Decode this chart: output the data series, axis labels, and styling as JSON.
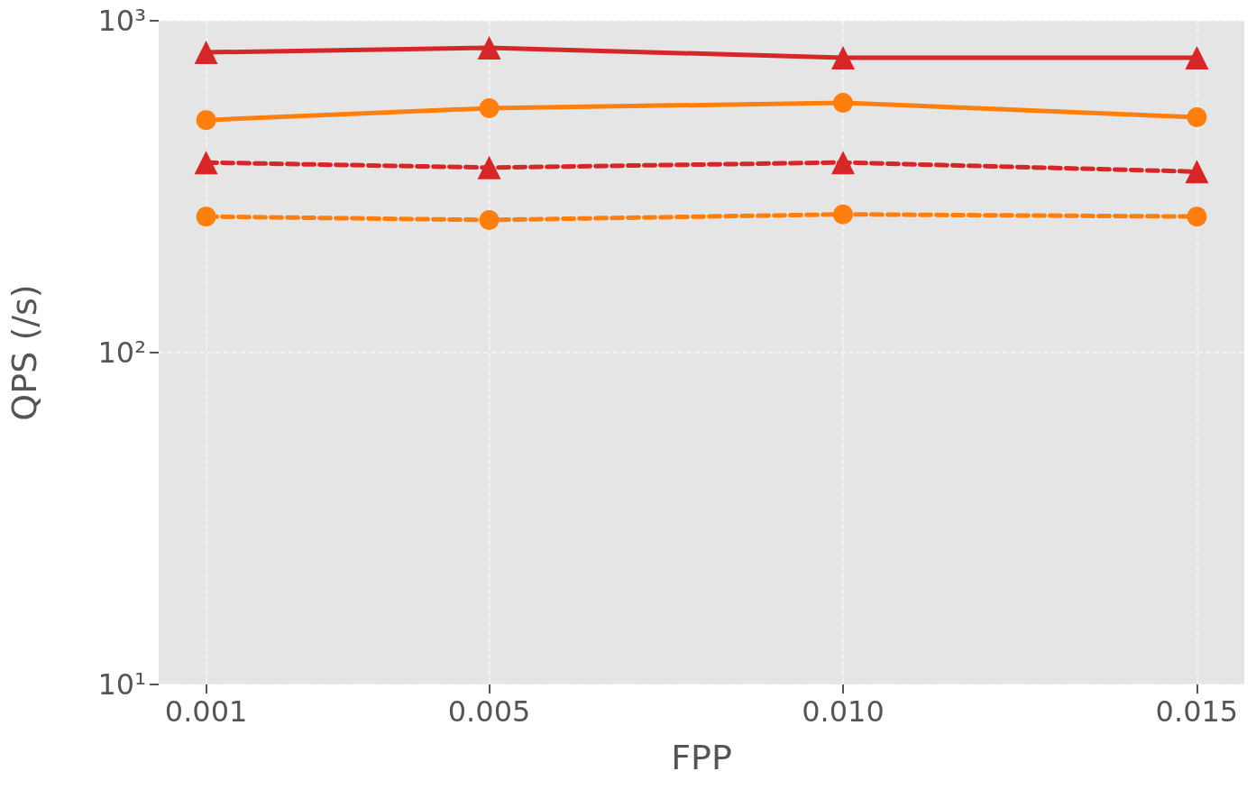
{
  "chart_data": {
    "type": "line",
    "xlabel": "FPP",
    "ylabel": "QPS (/s)",
    "x": [
      0.001,
      0.005,
      0.01,
      0.015
    ],
    "series": [
      {
        "color": "#d62728",
        "marker": "triangle",
        "line_style": "solid",
        "values": [
          803,
          829,
          774,
          774
        ]
      },
      {
        "color": "#ff7f0e",
        "marker": "circle",
        "line_style": "solid",
        "values": [
          502,
          545,
          566,
          512
        ]
      },
      {
        "color": "#d62728",
        "marker": "triangle",
        "line_style": "dashed",
        "values": [
          374,
          361,
          374,
          351
        ]
      },
      {
        "color": "#ff7f0e",
        "marker": "circle",
        "line_style": "dashed",
        "values": [
          257,
          251,
          261,
          257
        ]
      }
    ],
    "log": "y",
    "xlim": [
      0.00033,
      0.01567
    ],
    "ylim": [
      10,
      1000
    ],
    "xticks": [
      0.001,
      0.005,
      {
        "value": 0.01,
        "label": "0.010"
      },
      {
        "value": 0.015,
        "label": "0.015"
      }
    ],
    "yticks": [
      {
        "value": 10,
        "label": "10¹"
      },
      {
        "value": 100,
        "label": "10²"
      },
      {
        "value": 1000,
        "label": "10³"
      }
    ],
    "grid": true
  }
}
